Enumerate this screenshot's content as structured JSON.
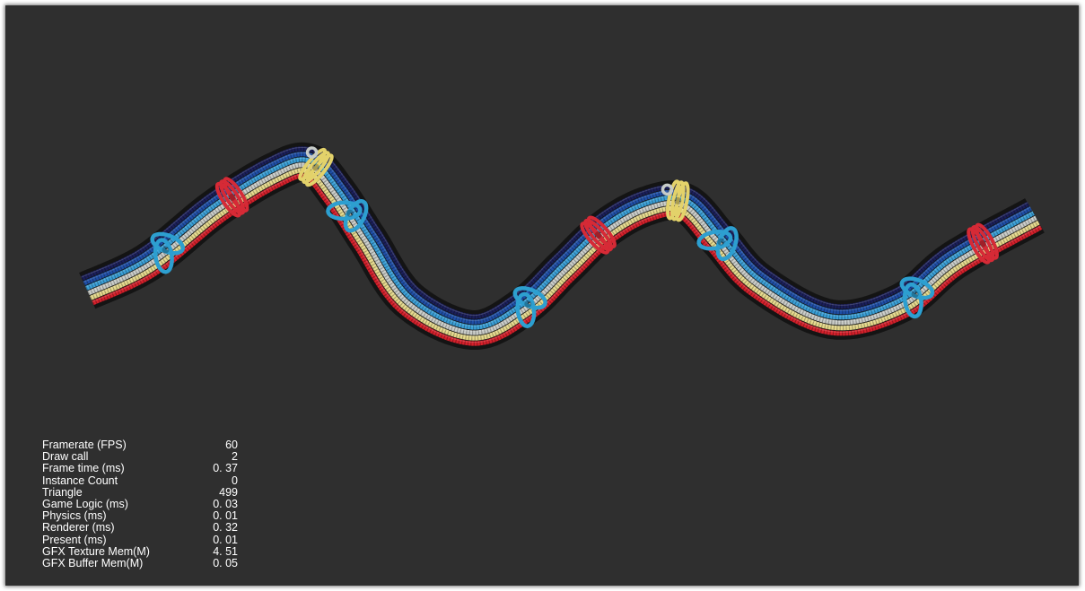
{
  "scene": {
    "background": "#2f2f2f",
    "rope_colors": [
      "#1b1f5a",
      "#1f4fa8",
      "#3aa0d8",
      "#c9ccc8",
      "#e6d98a",
      "#d6202b"
    ],
    "knot_colors": [
      "#2d9fd0",
      "#d62a36",
      "#e3d26a",
      "#c6cbc8"
    ]
  },
  "stats": [
    {
      "label": "Framerate (FPS)",
      "value": "60"
    },
    {
      "label": "Draw call",
      "value": "2"
    },
    {
      "label": "Frame time (ms)",
      "value": "0. 37"
    },
    {
      "label": "Instance Count",
      "value": "0"
    },
    {
      "label": "Triangle",
      "value": "499"
    },
    {
      "label": "Game Logic (ms)",
      "value": "0. 03"
    },
    {
      "label": "Physics (ms)",
      "value": "0. 01"
    },
    {
      "label": "Renderer (ms)",
      "value": "0. 32"
    },
    {
      "label": "Present (ms)",
      "value": "0. 01"
    },
    {
      "label": "GFX Texture Mem(M)",
      "value": "4. 51"
    },
    {
      "label": "GFX Buffer Mem(M)",
      "value": "0. 05"
    }
  ]
}
